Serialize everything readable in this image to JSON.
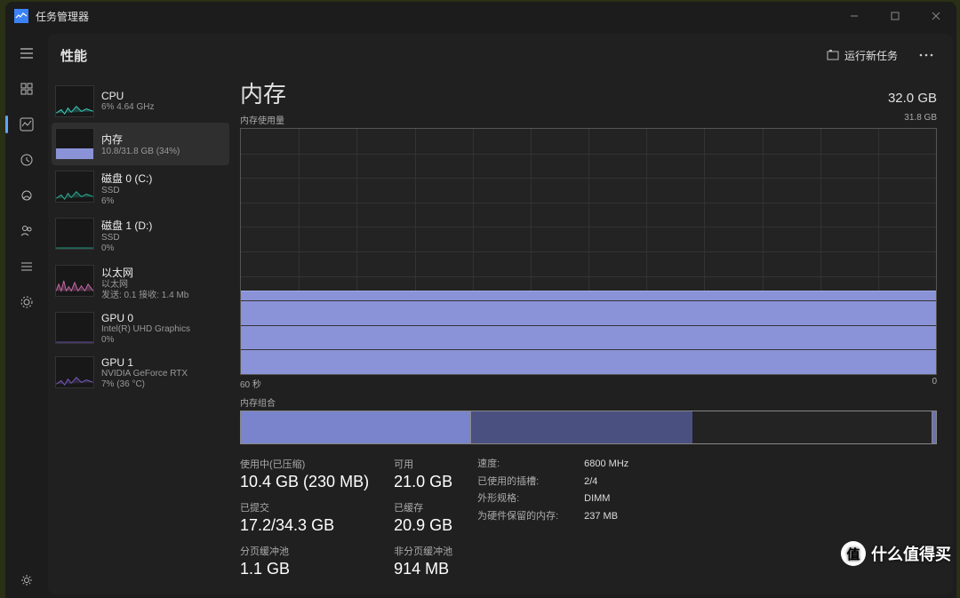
{
  "app": {
    "title": "任务管理器"
  },
  "header": {
    "tab": "性能",
    "runTask": "运行新任务"
  },
  "railIcons": [
    "menu",
    "processes",
    "performance",
    "history",
    "startup",
    "users",
    "details",
    "services"
  ],
  "sidebar": {
    "items": [
      {
        "name": "CPU",
        "sub": "6%  4.64 GHz",
        "color": "#3bd4c4",
        "kind": "line"
      },
      {
        "name": "内存",
        "sub": "10.8/31.8 GB (34%)",
        "color": "#8b93d8",
        "kind": "memfill",
        "fillPct": 34
      },
      {
        "name": "磁盘 0 (C:)",
        "sub1": "SSD",
        "sub2": "6%",
        "color": "#2bb59a",
        "kind": "line"
      },
      {
        "name": "磁盘 1 (D:)",
        "sub1": "SSD",
        "sub2": "0%",
        "color": "#2bb59a",
        "kind": "flat"
      },
      {
        "name": "以太网",
        "sub1": "以太网",
        "sub2": "发送: 0.1  接收: 1.4 Mb",
        "color": "#c96aa8",
        "kind": "net"
      },
      {
        "name": "GPU 0",
        "sub1": "Intel(R) UHD Graphics",
        "sub2": "0%",
        "color": "#7a5bc0",
        "kind": "flat"
      },
      {
        "name": "GPU 1",
        "sub1": "NVIDIA GeForce RTX",
        "sub2": "7% (36 °C)",
        "color": "#7a5bc0",
        "kind": "line"
      }
    ],
    "selected": 1
  },
  "detail": {
    "title": "内存",
    "capacity": "32.0 GB",
    "usageLabel": "内存使用量",
    "maxLabel": "31.8 GB",
    "chart": {
      "type": "area",
      "fill_color": "#8b93d8",
      "border_color": "#555b9a",
      "bg_color": "#232323",
      "grid_color": "#333333",
      "ylim": [
        0,
        31.8
      ],
      "currentPct": 34,
      "heightPct": 66,
      "gridlines": 10
    },
    "xaxis": {
      "left": "60 秒",
      "right": "0"
    },
    "composition": {
      "label": "内存组合",
      "segments": [
        {
          "name": "in-use",
          "pct": 33,
          "color": "#7a84cc"
        },
        {
          "name": "modified",
          "pct": 32,
          "color": "#4a5080"
        },
        {
          "name": "standby",
          "pct": 34,
          "color": "#232323"
        },
        {
          "name": "free",
          "pct": 1,
          "color": "#6a72b0"
        }
      ]
    },
    "stats": {
      "col1": [
        {
          "lbl": "使用中(已压缩)",
          "val": "10.4 GB (230 MB)"
        },
        {
          "lbl": "已提交",
          "val": "17.2/34.3 GB"
        },
        {
          "lbl": "分页缓冲池",
          "val": "1.1 GB"
        }
      ],
      "col2": [
        {
          "lbl": "可用",
          "val": "21.0 GB"
        },
        {
          "lbl": "已缓存",
          "val": "20.9 GB"
        },
        {
          "lbl": "非分页缓冲池",
          "val": "914 MB"
        }
      ],
      "kv": [
        {
          "k": "速度:",
          "v": "6800 MHz"
        },
        {
          "k": "已使用的插槽:",
          "v": "2/4"
        },
        {
          "k": "外形规格:",
          "v": "DIMM"
        },
        {
          "k": "为硬件保留的内存:",
          "v": "237 MB"
        }
      ]
    }
  },
  "watermark": "什么值得买"
}
